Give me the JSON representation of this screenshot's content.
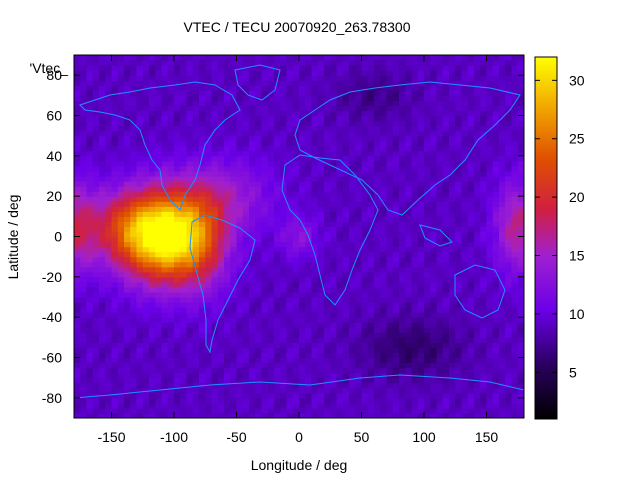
{
  "chart_data": {
    "type": "heatmap",
    "title": "VTEC / TECU 20070920_263.78300",
    "xlabel": "Longitude / deg",
    "ylabel": "Latitude / deg",
    "legend_label": "'Vtec_",
    "xlim": [
      -180,
      180
    ],
    "ylim": [
      -90,
      90
    ],
    "x_ticks": [
      -150,
      -100,
      -50,
      0,
      50,
      100,
      150
    ],
    "y_ticks": [
      -80,
      -60,
      -40,
      -20,
      0,
      20,
      40,
      60,
      80
    ],
    "x_tick_labels": [
      "-150",
      "-100",
      "-50",
      "0",
      "50",
      "100",
      "150"
    ],
    "y_tick_labels": [
      "-80",
      "-60",
      "-40",
      "-20",
      "0",
      "20",
      "40",
      "60",
      "80"
    ],
    "colorbar": {
      "range": [
        1,
        32
      ],
      "ticks": [
        5,
        10,
        15,
        20,
        25,
        30
      ],
      "tick_labels": [
        "5",
        "10",
        "15",
        "20",
        "25",
        "30"
      ]
    },
    "grid": false,
    "overlay": "coastlines",
    "grid_resolution": {
      "lon_step": 5,
      "lat_step": 2.5
    },
    "features": [
      {
        "lon": -105,
        "lat": 0,
        "sig_lon": 35,
        "sig_lat": 22,
        "amp": 24
      },
      {
        "lon": -140,
        "lat": 5,
        "sig_lon": 30,
        "sig_lat": 18,
        "amp": 8
      },
      {
        "lon": -60,
        "lat": 20,
        "sig_lon": 40,
        "sig_lat": 18,
        "amp": 5
      },
      {
        "lon": 175,
        "lat": 5,
        "sig_lon": 18,
        "sig_lat": 22,
        "amp": 8
      },
      {
        "lon": -180,
        "lat": 5,
        "sig_lon": 18,
        "sig_lat": 22,
        "amp": 8
      },
      {
        "lon": -75,
        "lat": -5,
        "sig_lon": 20,
        "sig_lat": 25,
        "amp": 4
      },
      {
        "lon": 0,
        "lat": 0,
        "sig_lon": 15,
        "sig_lat": 10,
        "amp": 4
      },
      {
        "lon": 90,
        "lat": -55,
        "sig_lon": 40,
        "sig_lat": 15,
        "amp": -3
      },
      {
        "lon": 60,
        "lat": 70,
        "sig_lon": 30,
        "sig_lat": 12,
        "amp": -2
      }
    ],
    "base_level": 9
  }
}
